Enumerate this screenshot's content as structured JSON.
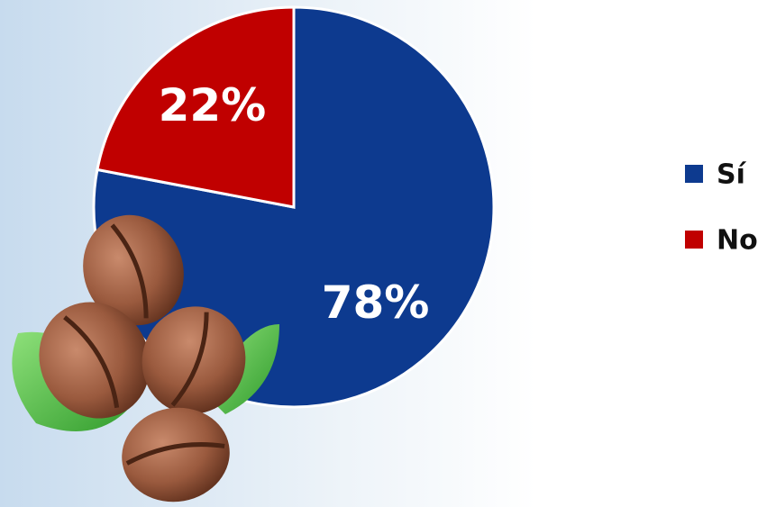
{
  "chart_data": {
    "type": "pie",
    "categories": [
      "Sí",
      "No"
    ],
    "values": [
      78,
      22
    ],
    "value_labels": [
      "78%",
      "22%"
    ],
    "colors": [
      "#0d3a8f",
      "#c00000"
    ],
    "legend": "right"
  }
}
